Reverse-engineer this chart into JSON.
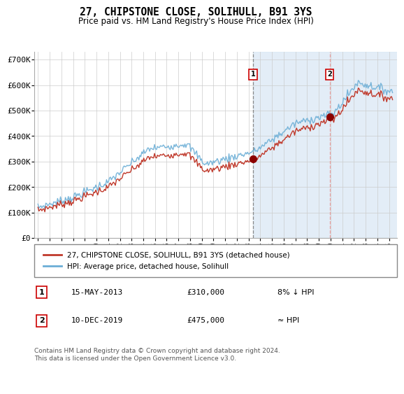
{
  "title": "27, CHIPSTONE CLOSE, SOLIHULL, B91 3YS",
  "subtitle": "Price paid vs. HM Land Registry's House Price Index (HPI)",
  "ylabel_ticks": [
    "£0",
    "£100K",
    "£200K",
    "£300K",
    "£400K",
    "£500K",
    "£600K",
    "£700K"
  ],
  "ytick_values": [
    0,
    100000,
    200000,
    300000,
    400000,
    500000,
    600000,
    700000
  ],
  "ylim": [
    0,
    730000
  ],
  "sale1_date": "15-MAY-2013",
  "sale1_price": 310000,
  "sale1_label": "8% ↓ HPI",
  "sale2_date": "10-DEC-2019",
  "sale2_price": 475000,
  "sale2_label": "≈ HPI",
  "legend_line1": "27, CHIPSTONE CLOSE, SOLIHULL, B91 3YS (detached house)",
  "legend_line2": "HPI: Average price, detached house, Solihull",
  "footer": "Contains HM Land Registry data © Crown copyright and database right 2024.\nThis data is licensed under the Open Government Licence v3.0.",
  "hpi_color": "#6baed6",
  "price_color": "#c0392b",
  "sale_marker_color": "#8b0000",
  "vline1_color": "#888888",
  "vline2_color": "#e8a0a0",
  "shaded_color": "#dce9f5",
  "grid_color": "#cccccc",
  "background_color": "#ffffff",
  "plot_bg_color": "#ffffff",
  "years_start": 1995.0,
  "years_end": 2025.3,
  "sale1_t": 2013.37,
  "sale2_t": 2019.92,
  "xtick_years": [
    1995,
    1996,
    1997,
    1998,
    1999,
    2000,
    2001,
    2002,
    2003,
    2004,
    2005,
    2006,
    2007,
    2008,
    2009,
    2010,
    2011,
    2012,
    2013,
    2014,
    2015,
    2016,
    2017,
    2018,
    2019,
    2020,
    2021,
    2022,
    2023,
    2024,
    2025
  ]
}
